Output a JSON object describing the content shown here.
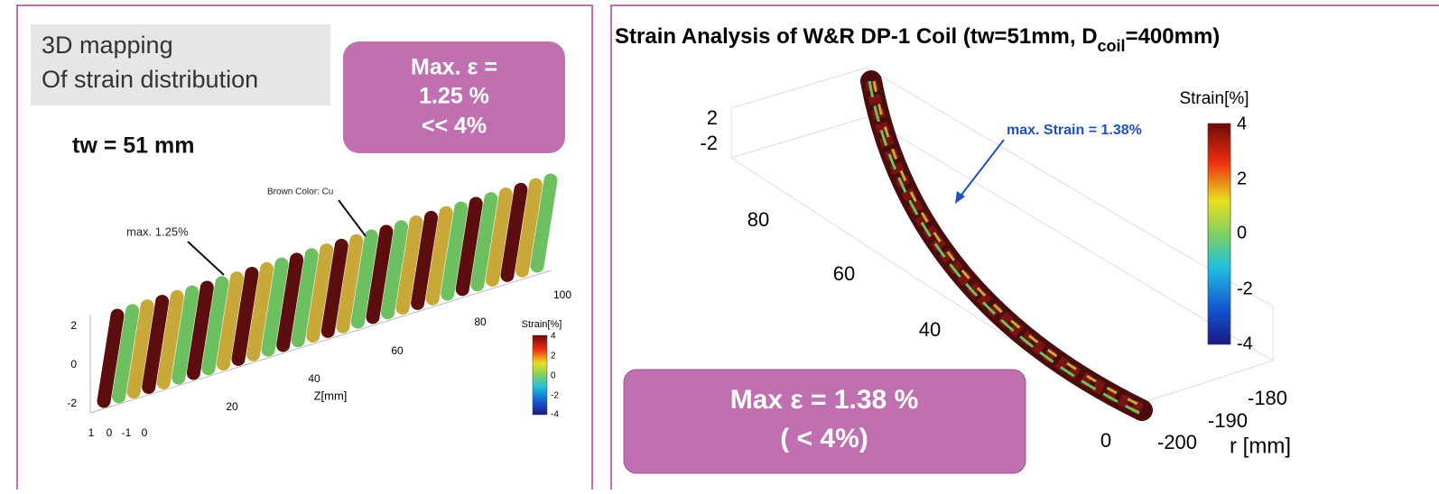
{
  "left": {
    "label": [
      "3D mapping",
      "Of strain distribution"
    ],
    "callout": [
      "Max. ε =",
      "1.25 %",
      "<< 4%"
    ],
    "tw": "tw = 51 mm",
    "annotations": [
      "Brown Color: Cu",
      "max. 1.25%"
    ],
    "y_ticks": [
      "2",
      "0",
      "-2"
    ],
    "x_ticks": [
      "1",
      "0",
      "-1",
      "0"
    ],
    "z_ticks": [
      "20",
      "40",
      "60",
      "80",
      "100"
    ],
    "z_label": "Z[mm]",
    "colorbar": {
      "title": "Strain[%]",
      "ticks": [
        "4",
        "2",
        "0",
        "-2",
        "-4"
      ]
    }
  },
  "right": {
    "title": {
      "main": "Strain Analysis of W&R DP-1 Coil (tw=51mm, D",
      "sub": "coil",
      "end": "=400mm)"
    },
    "annotation": "max. Strain = 1.38%",
    "z_ticks": [
      "2",
      "-2"
    ],
    "y_ticks": [
      "80",
      "60",
      "40",
      "0"
    ],
    "r_ticks": [
      "-200",
      "-190",
      "-180"
    ],
    "r_label": "r [mm]",
    "colorbar": {
      "title": "Strain[%]",
      "ticks": [
        "4",
        "2",
        "0",
        "-2",
        "-4"
      ]
    },
    "callout": [
      "Max ε = 1.38 %",
      "( < 4%)"
    ]
  }
}
